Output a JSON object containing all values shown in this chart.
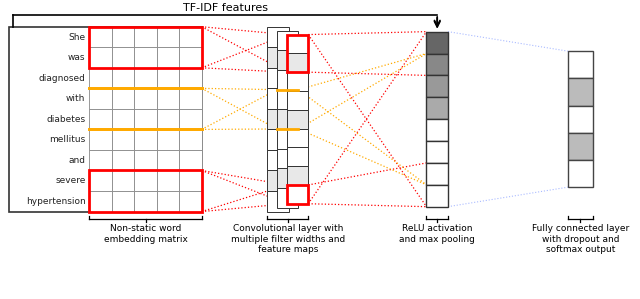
{
  "title": "TF-IDF features",
  "words": [
    "She",
    "was",
    "diagnosed",
    "with",
    "diabetes",
    "mellitus",
    "and",
    "severe",
    "hypertension"
  ],
  "label1": "Non-static word\nembedding matrix",
  "label2": "Convolutional layer with\nmultiple filter widths and\nfeature maps",
  "label3": "ReLU activation\nand max pooling",
  "label4": "Fully connected layer\nwith dropout and\nsoftmax output",
  "bg_color": "#ffffff",
  "red_color": "#ff0000",
  "gold_color": "#ffaa00",
  "blue_color": "#aabbff",
  "dark_gray": "#555555",
  "med_gray": "#888888",
  "light_gray": "#cccccc",
  "cell_fill": "#ffffff",
  "label_bg": "#ffffff"
}
